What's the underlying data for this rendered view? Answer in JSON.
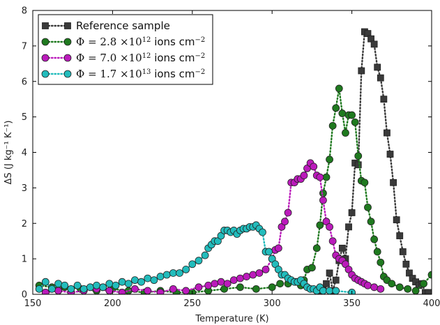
{
  "chart_data": {
    "type": "scatter",
    "title": "",
    "xlabel": "Temperature (K)",
    "ylabel": "ΔS (J kg⁻¹ K⁻¹)",
    "xlim": [
      150,
      400
    ],
    "ylim": [
      0,
      8
    ],
    "xticks": [
      "150",
      "200",
      "250",
      "300",
      "350",
      "400"
    ],
    "yticks": [
      "0",
      "1",
      "2",
      "3",
      "4",
      "5",
      "6",
      "7",
      "8"
    ],
    "grid": false,
    "legend_position": "top-left",
    "series": [
      {
        "name": "Reference sample",
        "name_parts": [
          [
            "Reference sample",
            "",
            "sans"
          ]
        ],
        "color": "#3a3a3a",
        "marker": "square",
        "line": "dotted",
        "x": [
          330,
          332,
          334,
          336,
          338,
          340,
          342,
          344,
          346,
          348,
          350,
          352,
          354,
          356,
          358,
          360,
          362,
          364,
          366,
          368,
          370,
          372,
          374,
          376,
          378,
          380,
          382,
          384,
          386,
          388,
          390,
          392,
          394,
          396,
          398
        ],
        "y": [
          0.05,
          0.15,
          0.3,
          0.6,
          0.1,
          0.4,
          0.95,
          1.3,
          1.0,
          1.9,
          2.3,
          3.7,
          3.65,
          6.3,
          7.4,
          7.35,
          7.2,
          7.05,
          6.4,
          6.1,
          5.5,
          4.55,
          3.95,
          3.15,
          2.1,
          1.65,
          1.2,
          0.85,
          0.6,
          0.45,
          0.35,
          0.25,
          0.3,
          0.05,
          0.05
        ]
      },
      {
        "name": "Φ = 2.8 ×10^12 ions cm^-2",
        "name_parts": [
          [
            "Φ = 2.8 ×10",
            ""
          ],
          [
            "12",
            "sup"
          ],
          [
            " ions cm",
            "",
            "sans"
          ],
          [
            "−2",
            "sup"
          ]
        ],
        "color": "#1f7a1f",
        "marker": "circle",
        "line": "dotted",
        "x": [
          154,
          162,
          170,
          180,
          190,
          200,
          210,
          220,
          230,
          240,
          250,
          260,
          270,
          280,
          290,
          300,
          305,
          310,
          315,
          318,
          320,
          322,
          325,
          328,
          330,
          332,
          334,
          336,
          338,
          340,
          342,
          344,
          346,
          348,
          350,
          352,
          354,
          356,
          358,
          360,
          362,
          364,
          366,
          368,
          370,
          372,
          375,
          380,
          385,
          390,
          395,
          400
        ],
        "y": [
          0.25,
          0.2,
          0.2,
          0.15,
          0.1,
          0.15,
          0.1,
          0.05,
          0.1,
          0.05,
          0.05,
          0.1,
          0.15,
          0.2,
          0.15,
          0.2,
          0.3,
          0.3,
          0.35,
          0.25,
          0.4,
          0.7,
          0.75,
          1.3,
          1.95,
          2.85,
          3.3,
          3.8,
          4.75,
          5.25,
          5.8,
          5.1,
          4.55,
          5.05,
          5.05,
          4.85,
          3.9,
          3.2,
          3.15,
          2.45,
          2.05,
          1.55,
          1.2,
          0.9,
          0.5,
          0.4,
          0.3,
          0.2,
          0.15,
          0.1,
          0.3,
          0.55
        ]
      },
      {
        "name": "Φ = 7.0 ×10^12 ions cm^-2",
        "name_parts": [
          [
            "Φ = 7.0 ×10",
            ""
          ],
          [
            "12",
            "sup"
          ],
          [
            " ions cm",
            "",
            "sans"
          ],
          [
            "−2",
            "sup"
          ]
        ],
        "color": "#bb1bbb",
        "marker": "circle",
        "line": "dotted",
        "x": [
          158,
          166,
          174,
          182,
          190,
          198,
          206,
          214,
          222,
          230,
          238,
          246,
          254,
          260,
          264,
          268,
          272,
          276,
          280,
          284,
          288,
          292,
          296,
          300,
          302,
          304,
          306,
          308,
          310,
          312,
          314,
          316,
          318,
          320,
          322,
          324,
          326,
          328,
          330,
          332,
          334,
          336,
          338,
          340,
          342,
          344,
          346,
          348,
          350,
          352,
          354,
          356,
          358,
          360,
          364,
          368
        ],
        "y": [
          0.05,
          0.1,
          0.05,
          0.1,
          0.15,
          0.1,
          0.05,
          0.15,
          0.1,
          0.05,
          0.15,
          0.1,
          0.2,
          0.25,
          0.3,
          0.35,
          0.3,
          0.4,
          0.45,
          0.5,
          0.55,
          0.6,
          0.7,
          1.0,
          1.25,
          1.3,
          1.9,
          2.05,
          2.3,
          3.15,
          3.15,
          3.25,
          3.25,
          3.35,
          3.55,
          3.7,
          3.6,
          3.35,
          3.3,
          2.65,
          2.05,
          1.9,
          1.5,
          1.1,
          1.0,
          0.95,
          0.85,
          0.7,
          0.55,
          0.45,
          0.4,
          0.35,
          0.3,
          0.25,
          0.2,
          0.15
        ]
      },
      {
        "name": "Φ = 1.7 ×10^13 ions cm^-2",
        "name_parts": [
          [
            "Φ = 1.7 ×10",
            ""
          ],
          [
            "13",
            "sup"
          ],
          [
            " ions cm",
            "",
            "sans"
          ],
          [
            "−2",
            "sup"
          ]
        ],
        "color": "#22bcbc",
        "marker": "circle",
        "line": "dotted",
        "x": [
          154,
          158,
          162,
          166,
          170,
          174,
          178,
          182,
          186,
          190,
          194,
          198,
          202,
          206,
          210,
          214,
          218,
          222,
          226,
          230,
          234,
          238,
          242,
          246,
          250,
          254,
          258,
          260,
          262,
          264,
          266,
          268,
          270,
          272,
          274,
          276,
          278,
          280,
          282,
          284,
          286,
          288,
          290,
          292,
          294,
          296,
          298,
          300,
          302,
          304,
          306,
          308,
          310,
          312,
          314,
          316,
          318,
          320,
          322,
          324,
          326,
          328,
          330,
          332,
          336,
          340,
          350
        ],
        "y": [
          0.15,
          0.35,
          0.15,
          0.3,
          0.25,
          0.15,
          0.25,
          0.15,
          0.2,
          0.25,
          0.2,
          0.3,
          0.25,
          0.35,
          0.3,
          0.4,
          0.35,
          0.45,
          0.4,
          0.5,
          0.55,
          0.6,
          0.6,
          0.7,
          0.85,
          0.95,
          1.1,
          1.3,
          1.4,
          1.5,
          1.5,
          1.65,
          1.8,
          1.8,
          1.75,
          1.8,
          1.7,
          1.8,
          1.85,
          1.85,
          1.9,
          1.9,
          1.95,
          1.85,
          1.75,
          1.2,
          1.2,
          1.0,
          0.85,
          0.7,
          0.55,
          0.55,
          0.45,
          0.4,
          0.35,
          0.35,
          0.4,
          0.3,
          0.2,
          0.15,
          0.15,
          0.1,
          0.2,
          0.1,
          0.1,
          0.1,
          0.05
        ]
      }
    ]
  }
}
